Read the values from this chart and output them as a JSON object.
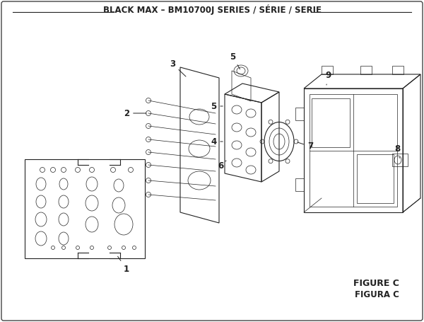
{
  "title": "BLACK MAX – BM10700J SERIES / SÉRIE / SERIE",
  "figure_label": "FIGURE C",
  "figura_label": "FIGURA C",
  "bg_color": "#ffffff",
  "line_color": "#222222",
  "border_color": "#333333",
  "title_fontsize": 8.5,
  "label_fontsize": 9,
  "part_label_fontsize": 8.5
}
